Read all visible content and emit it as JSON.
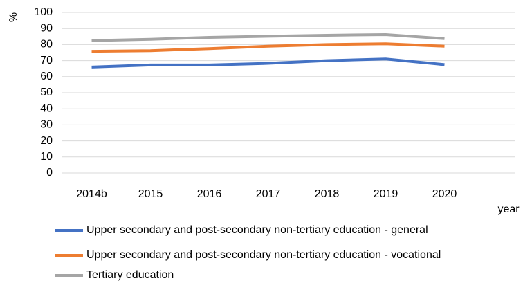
{
  "chart_data": {
    "type": "line",
    "y_label": "%",
    "x_label": "year",
    "categories": [
      "2014b",
      "2015",
      "2016",
      "2017",
      "2018",
      "2019",
      "2020"
    ],
    "series": [
      {
        "name": "Upper secondary and post-secondary non-tertiary education - general",
        "color": "#4472c4",
        "values": [
          66,
          67.3,
          67.3,
          68.3,
          70,
          71,
          67.5
        ]
      },
      {
        "name": "Upper secondary and post-secondary non-tertiary education - vocational",
        "color": "#ed7d31",
        "values": [
          75.8,
          76.2,
          77.5,
          79,
          80,
          80.5,
          79
        ]
      },
      {
        "name": "Tertiary education",
        "color": "#a5a5a5",
        "values": [
          82.5,
          83.3,
          84.5,
          85.2,
          85.8,
          86.2,
          83.7
        ]
      }
    ],
    "ylim": [
      0,
      100
    ],
    "yticks": [
      0,
      10,
      20,
      30,
      40,
      50,
      60,
      70,
      80,
      90,
      100
    ],
    "grid": true,
    "legend": "bottom"
  }
}
